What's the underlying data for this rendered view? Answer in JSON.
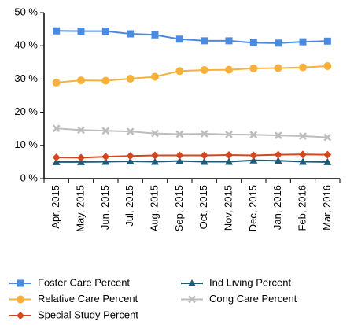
{
  "chart_data": {
    "type": "line",
    "categories": [
      "Apr, 2015",
      "May, 2015",
      "Jun, 2015",
      "Jul, 2015",
      "Aug, 2015",
      "Sep, 2015",
      "Oct, 2015",
      "Nov, 2015",
      "Dec, 2015",
      "Jan, 2016",
      "Feb, 2016",
      "Mar, 2016"
    ],
    "ylim": [
      0,
      50
    ],
    "yticks": [
      {
        "value": 0,
        "label": "0 %"
      },
      {
        "value": 10,
        "label": "10 %"
      },
      {
        "value": 20,
        "label": "20 %"
      },
      {
        "value": 30,
        "label": "30 %"
      },
      {
        "value": 40,
        "label": "40 %"
      },
      {
        "value": 50,
        "label": "50 %"
      }
    ],
    "grid": false,
    "legend": "bottom",
    "series": [
      {
        "name": "Foster Care Percent",
        "color": "#4a8be0",
        "marker": "square",
        "values": [
          44.5,
          44.4,
          44.4,
          43.6,
          43.3,
          42.0,
          41.5,
          41.5,
          40.9,
          40.8,
          41.2,
          41.4
        ]
      },
      {
        "name": "Ind Living Percent",
        "color": "#1e5b78",
        "marker": "triangle",
        "values": [
          5.0,
          5.0,
          5.1,
          5.2,
          5.1,
          5.3,
          5.1,
          5.1,
          5.5,
          5.4,
          5.1,
          5.0
        ]
      },
      {
        "name": "Relative Care Percent",
        "color": "#f7b13b",
        "marker": "circle",
        "values": [
          28.9,
          29.6,
          29.5,
          30.1,
          30.7,
          32.4,
          32.7,
          32.8,
          33.2,
          33.3,
          33.5,
          33.9
        ]
      },
      {
        "name": "Cong Care Percent",
        "color": "#bdbdbd",
        "marker": "x",
        "values": [
          15.1,
          14.6,
          14.4,
          14.2,
          13.6,
          13.4,
          13.5,
          13.3,
          13.2,
          13.0,
          12.8,
          12.4
        ]
      },
      {
        "name": "Special Study Percent",
        "color": "#d4471e",
        "marker": "diamond",
        "values": [
          6.4,
          6.3,
          6.6,
          6.8,
          7.0,
          7.0,
          7.0,
          7.1,
          7.0,
          7.2,
          7.3,
          7.2
        ]
      }
    ]
  }
}
